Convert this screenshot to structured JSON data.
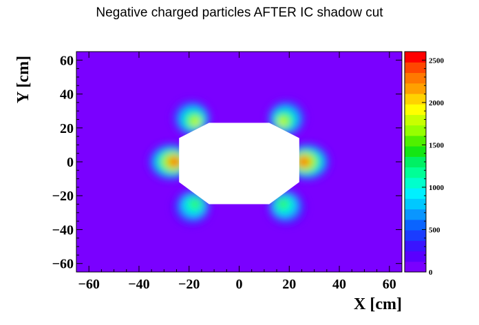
{
  "chart_data": {
    "type": "heatmap",
    "title": "Negative charged particles AFTER IC shadow cut",
    "xlabel": "X [cm]",
    "ylabel": "Y [cm]",
    "xlim": [
      -65,
      65
    ],
    "ylim": [
      -65,
      65
    ],
    "x_ticks": [
      -60,
      -40,
      -20,
      0,
      20,
      40,
      60
    ],
    "x_tick_labels": [
      "−60",
      "−40",
      "−20",
      "0",
      "20",
      "40",
      "60"
    ],
    "y_ticks": [
      -60,
      -40,
      -20,
      0,
      20,
      40,
      60
    ],
    "y_tick_labels": [
      "−60",
      "−40",
      "−20",
      "0",
      "20",
      "40",
      "60"
    ],
    "zlim": [
      0,
      2600
    ],
    "z_ticks": [
      0,
      500,
      1000,
      1500,
      2000,
      2500
    ],
    "z_tick_labels": [
      "0",
      "500",
      "1000",
      "1500",
      "2000",
      "2500"
    ],
    "palette": [
      "#7a00ff",
      "#5a00ff",
      "#3a14ff",
      "#1a3cff",
      "#0a64ff",
      "#0a96ff",
      "#00c8ff",
      "#00f0ff",
      "#00ffcc",
      "#00ff96",
      "#00f064",
      "#14e614",
      "#50f000",
      "#96ff00",
      "#c8ff00",
      "#ffff00",
      "#ffd200",
      "#ffa000",
      "#ff7800",
      "#ff4600",
      "#ff0000"
    ],
    "background_color": "#7a00ff",
    "excluded_region_polygon": [
      [
        -12,
        23
      ],
      [
        12,
        23
      ],
      [
        24,
        14
      ],
      [
        24,
        -12
      ],
      [
        12,
        -25
      ],
      [
        -12,
        -25
      ],
      [
        -24,
        -12
      ],
      [
        -24,
        14
      ]
    ],
    "hotspots": [
      {
        "x": -25,
        "y": 0,
        "peak": 2600
      },
      {
        "x": 25,
        "y": 0,
        "peak": 2600
      },
      {
        "x": -17,
        "y": 23,
        "peak": 1900
      },
      {
        "x": 17,
        "y": 23,
        "peak": 1900
      },
      {
        "x": -17,
        "y": -24,
        "peak": 1500
      },
      {
        "x": 17,
        "y": -24,
        "peak": 1500
      }
    ]
  }
}
